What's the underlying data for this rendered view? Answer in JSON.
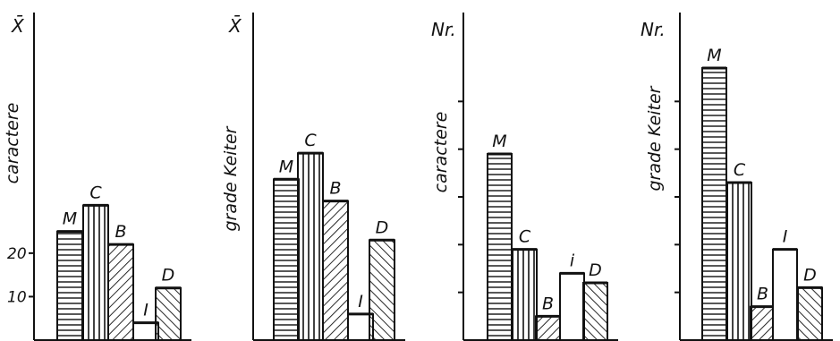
{
  "chart_data": [
    {
      "type": "bar",
      "y_axis_symbol": "X̄",
      "ylabel": "caractere",
      "categories": [
        "M",
        "C",
        "B",
        "I",
        "D"
      ],
      "category_labels": [
        "M",
        "C",
        "B",
        "I",
        "D"
      ],
      "values": [
        25,
        31,
        22,
        4,
        12
      ],
      "patterns": [
        "horizontal",
        "vertical",
        "diagonal-right",
        "none",
        "diagonal-left"
      ],
      "ylim": [
        0,
        70
      ],
      "y_ticks": [
        10,
        20
      ],
      "y_tick_labels": [
        "10",
        "20"
      ]
    },
    {
      "type": "bar",
      "y_axis_symbol": "X̄",
      "ylabel": "grade Keiter",
      "categories": [
        "M",
        "C",
        "B",
        "I",
        "D"
      ],
      "category_labels": [
        "M",
        "C",
        "B",
        "I",
        "D"
      ],
      "values": [
        37,
        43,
        32,
        6,
        23
      ],
      "patterns": [
        "horizontal",
        "vertical",
        "diagonal-right",
        "none",
        "diagonal-left"
      ],
      "ylim": [
        0,
        70
      ],
      "y_ticks": [],
      "y_tick_labels": []
    },
    {
      "type": "bar",
      "y_axis_symbol": "Nr.",
      "ylabel": "caractere",
      "categories": [
        "M",
        "C",
        "B",
        "I",
        "D"
      ],
      "category_labels": [
        "M",
        "C",
        "B",
        "i",
        "D"
      ],
      "values": [
        39,
        19,
        5,
        14,
        12
      ],
      "patterns": [
        "horizontal",
        "vertical",
        "diagonal-right",
        "none",
        "diagonal-left"
      ],
      "ylim": [
        0,
        60
      ],
      "y_ticks": [
        10,
        20,
        30,
        40,
        50
      ],
      "y_tick_labels": []
    },
    {
      "type": "bar",
      "y_axis_symbol": "Nr.",
      "ylabel": "grade Keiter",
      "categories": [
        "M",
        "C",
        "B",
        "I",
        "D"
      ],
      "category_labels": [
        "M",
        "C",
        "B",
        "I",
        "D"
      ],
      "values": [
        57,
        33,
        7,
        19,
        11
      ],
      "patterns": [
        "horizontal",
        "vertical",
        "diagonal-right",
        "none",
        "diagonal-left"
      ],
      "ylim": [
        0,
        60
      ],
      "y_ticks": [
        10,
        20,
        30,
        40,
        50
      ],
      "y_tick_labels": []
    }
  ]
}
